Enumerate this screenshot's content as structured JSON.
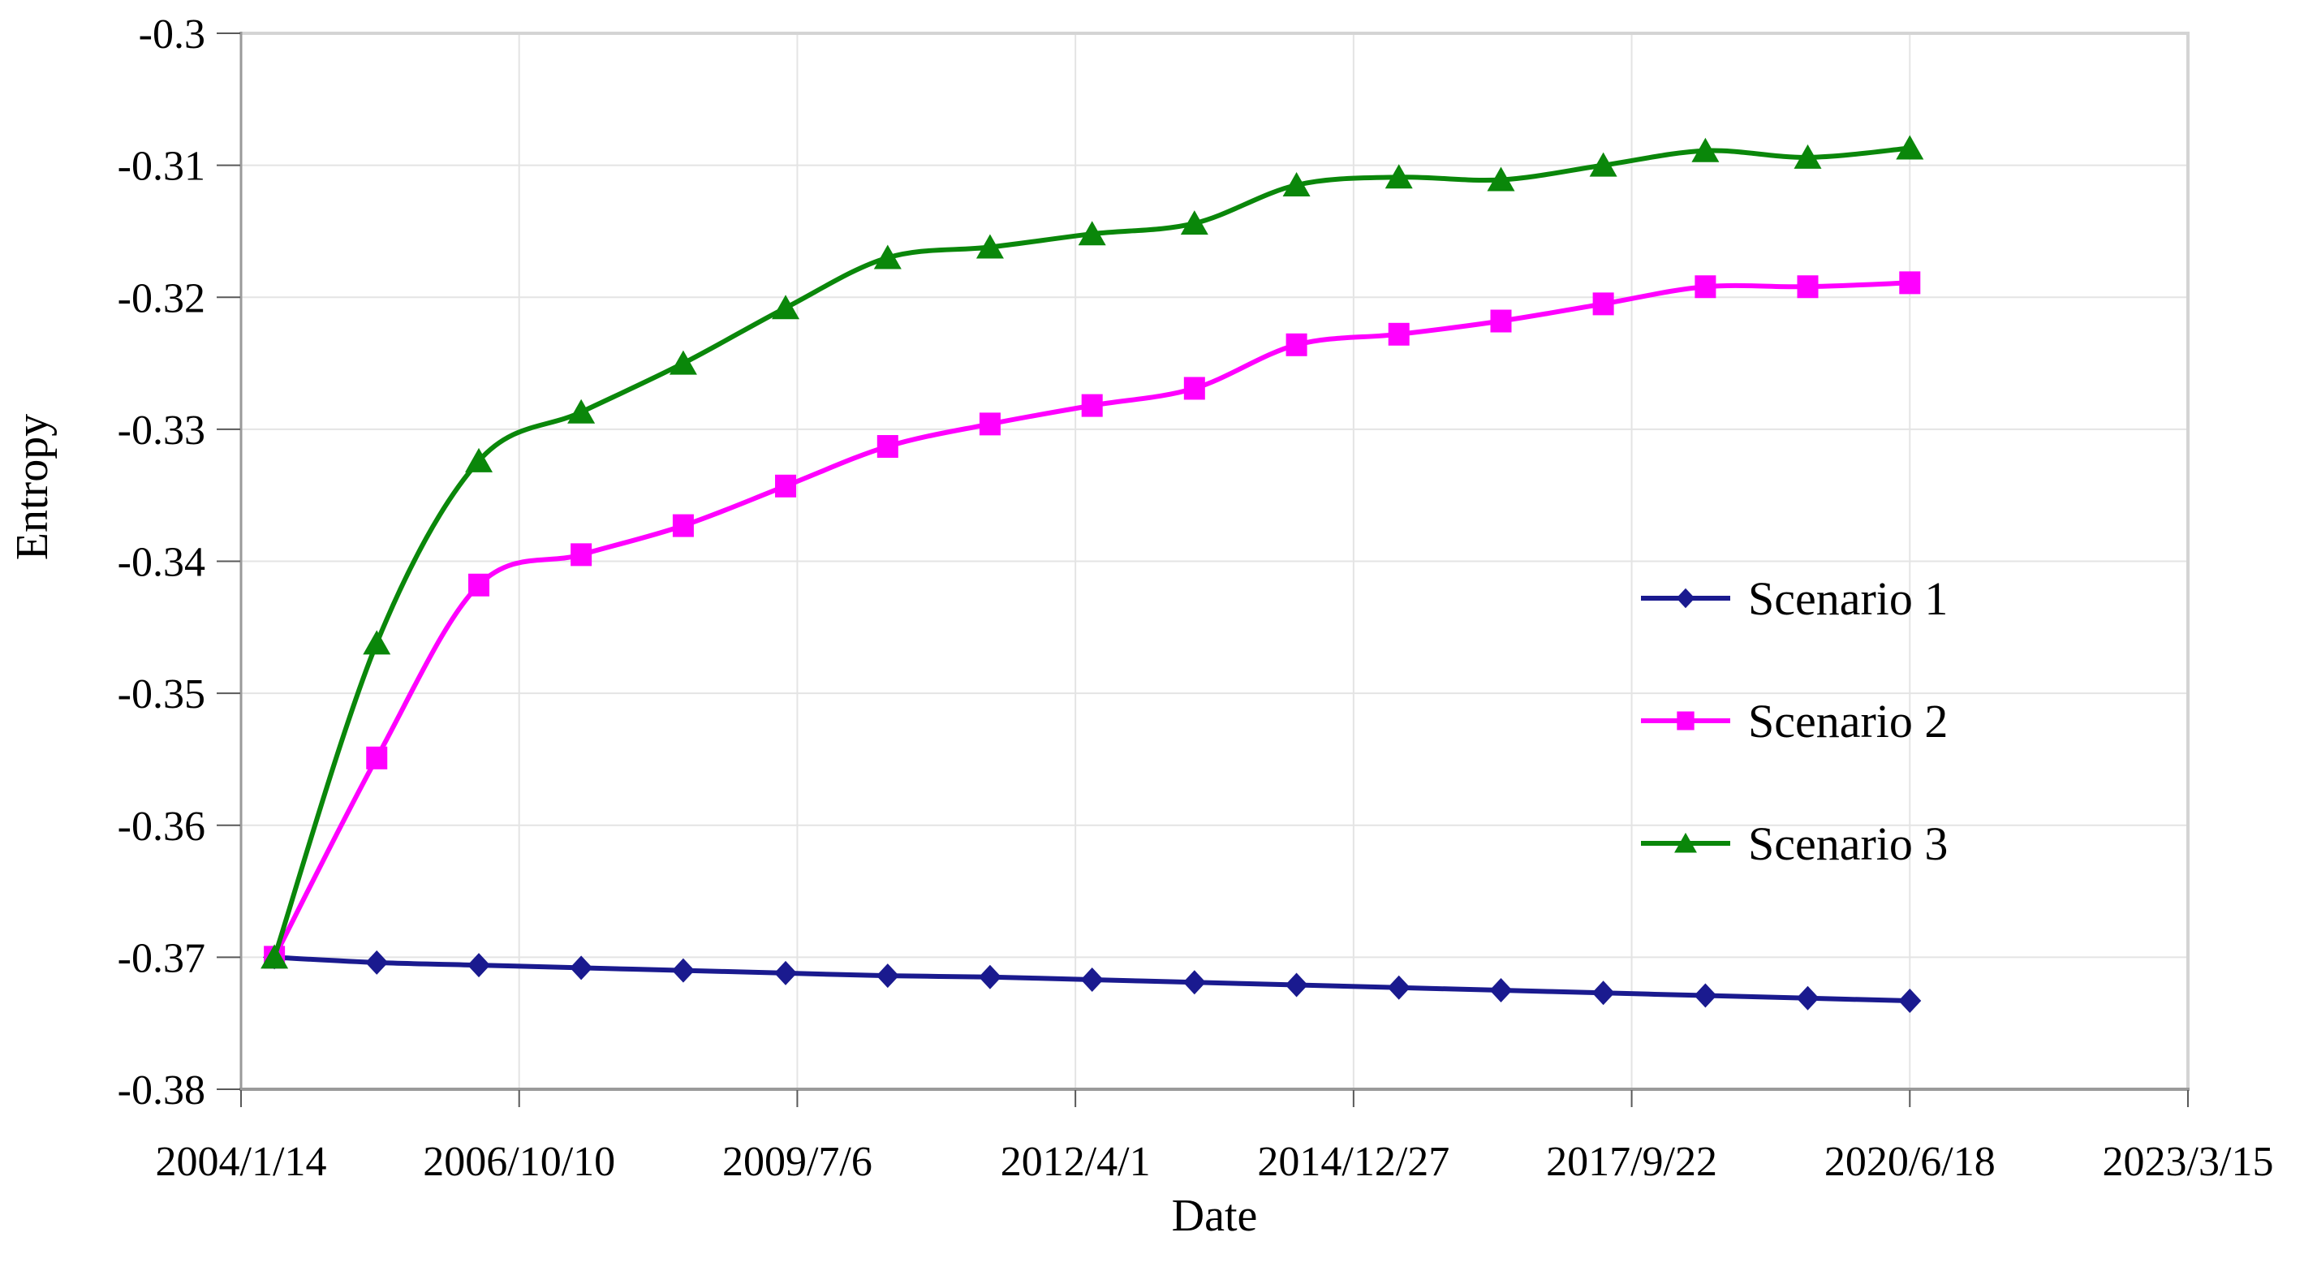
{
  "chart_data": {
    "type": "line",
    "title": "",
    "xlabel": "Date",
    "ylabel": "Entropy",
    "grid": true,
    "legend_position": "center-right",
    "x_axis": {
      "unit": "days_after_first_tick",
      "range_days": [
        0,
        7000
      ],
      "tick_days": [
        0,
        1000,
        2000,
        3000,
        4000,
        5000,
        6000,
        7000
      ],
      "tick_labels": [
        "2004/1/14",
        "2006/10/10",
        "2009/7/6",
        "2012/4/1",
        "2014/12/27",
        "2017/9/22",
        "2020/6/18",
        "2023/3/15"
      ]
    },
    "y_axis": {
      "range": [
        -0.38,
        -0.3
      ],
      "tick_values": [
        -0.3,
        -0.31,
        -0.32,
        -0.33,
        -0.34,
        -0.35,
        -0.36,
        -0.37,
        -0.38
      ],
      "tick_labels": [
        "-0.3",
        "-0.31",
        "-0.32",
        "-0.33",
        "-0.34",
        "-0.35",
        "-0.36",
        "-0.37",
        "-0.38"
      ]
    },
    "x_days": [
      120,
      488,
      855,
      1223,
      1590,
      1958,
      2325,
      2693,
      3060,
      3428,
      3795,
      4163,
      4530,
      4898,
      5265,
      5633,
      6000
    ],
    "series": [
      {
        "name": "Scenario 1",
        "color": "#1a1a8f",
        "marker": "diamond",
        "values": [
          -0.37,
          -0.3704,
          -0.3706,
          -0.3708,
          -0.371,
          -0.3712,
          -0.3714,
          -0.3715,
          -0.3717,
          -0.3719,
          -0.3721,
          -0.3723,
          -0.3725,
          -0.3727,
          -0.3729,
          -0.3731,
          -0.3733
        ]
      },
      {
        "name": "Scenario 2",
        "color": "#ff00ff",
        "marker": "square",
        "values": [
          -0.37,
          -0.3549,
          -0.3418,
          -0.3395,
          -0.3373,
          -0.3343,
          -0.3313,
          -0.3296,
          -0.3282,
          -0.3269,
          -0.3236,
          -0.3228,
          -0.3218,
          -0.3205,
          -0.3192,
          -0.3192,
          -0.3189
        ]
      },
      {
        "name": "Scenario 3",
        "color": "#0a870a",
        "marker": "triangle",
        "values": [
          -0.37,
          -0.3462,
          -0.3324,
          -0.3287,
          -0.325,
          -0.3208,
          -0.317,
          -0.3162,
          -0.3152,
          -0.3144,
          -0.3115,
          -0.3109,
          -0.3111,
          -0.31,
          -0.3089,
          -0.3094,
          -0.3087
        ]
      }
    ],
    "style": {
      "plot_border_color": "#d4d4d4",
      "axis_line_color": "#9a9a9a",
      "tick_mark_color": "#595959",
      "gridline_color": "#e4e4e4",
      "background": "#ffffff"
    }
  }
}
